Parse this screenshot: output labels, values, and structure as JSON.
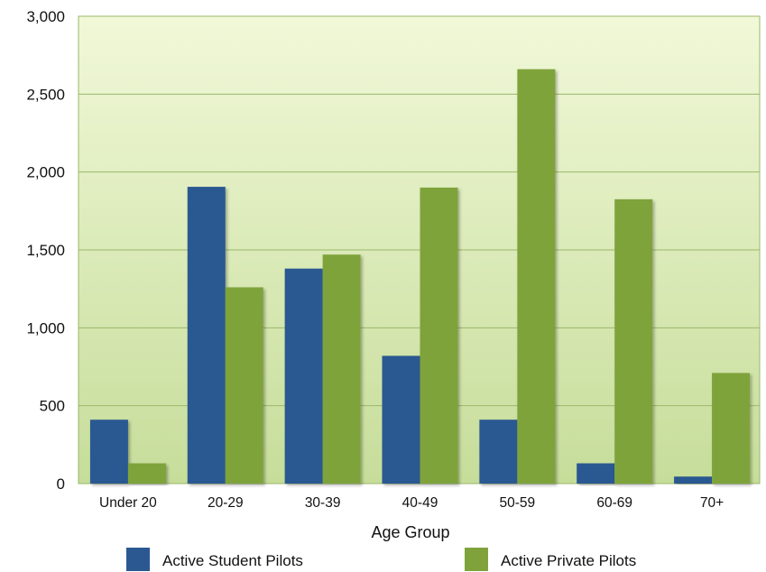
{
  "chart_data": {
    "type": "bar",
    "title": "",
    "xlabel": "Age Group",
    "ylabel": "",
    "ylim": [
      0,
      3000
    ],
    "yticks": [
      0,
      500,
      1000,
      1500,
      2000,
      2500,
      3000
    ],
    "ytick_labels": [
      "0",
      "500",
      "1,000",
      "1,500",
      "2,000",
      "2,500",
      "3,000"
    ],
    "grid": true,
    "legend_position": "bottom",
    "categories": [
      "Under 20",
      "20-29",
      "30-39",
      "40-49",
      "50-59",
      "60-69",
      "70+"
    ],
    "series": [
      {
        "name": "Active Student Pilots",
        "color": "#2b5891",
        "values": [
          410,
          1905,
          1380,
          820,
          410,
          130,
          45
        ]
      },
      {
        "name": "Active Private Pilots",
        "color": "#7fa33a",
        "values": [
          130,
          1260,
          1470,
          1900,
          2660,
          1825,
          710
        ]
      }
    ]
  }
}
